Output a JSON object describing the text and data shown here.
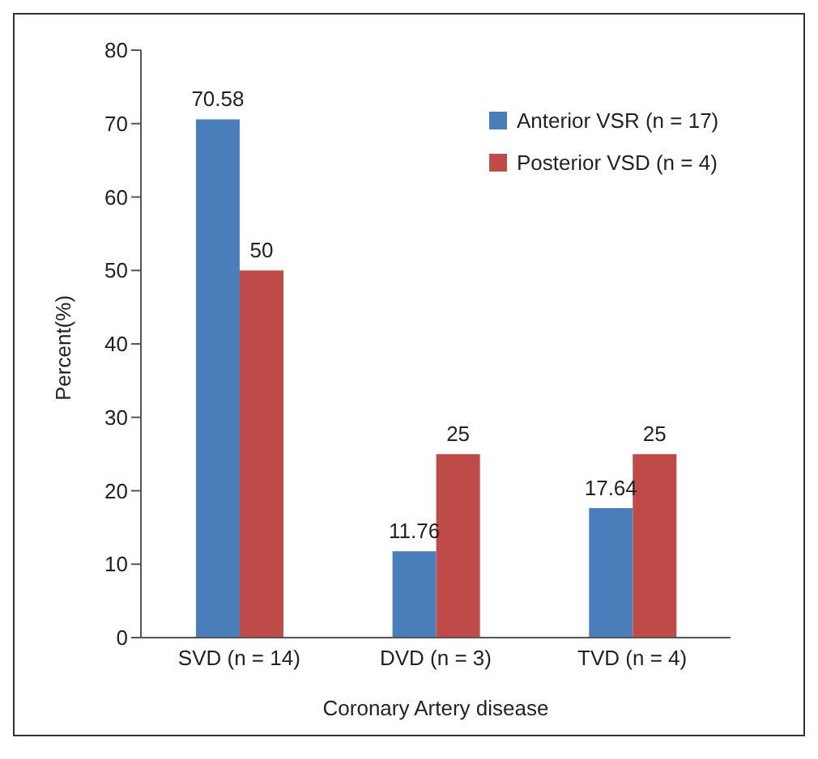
{
  "chart_data": {
    "type": "bar",
    "xlabel": "Coronary Artery disease",
    "ylabel": "Percent(%)",
    "categories": [
      "SVD (n = 14)",
      "DVD (n = 3)",
      "TVD (n = 4)"
    ],
    "series": [
      {
        "name": "Anterior VSR (n = 17)",
        "color": "#4a7ebb",
        "values": [
          70.58,
          11.76,
          17.64
        ]
      },
      {
        "name": "Posterior VSD (n = 4)",
        "color": "#be4b48",
        "values": [
          50,
          25,
          25
        ]
      }
    ],
    "ylim": [
      0,
      80
    ],
    "yticks": [
      0,
      10,
      20,
      30,
      40,
      50,
      60,
      70,
      80
    ],
    "grid": false,
    "legend": "top right",
    "data_labels": true
  }
}
